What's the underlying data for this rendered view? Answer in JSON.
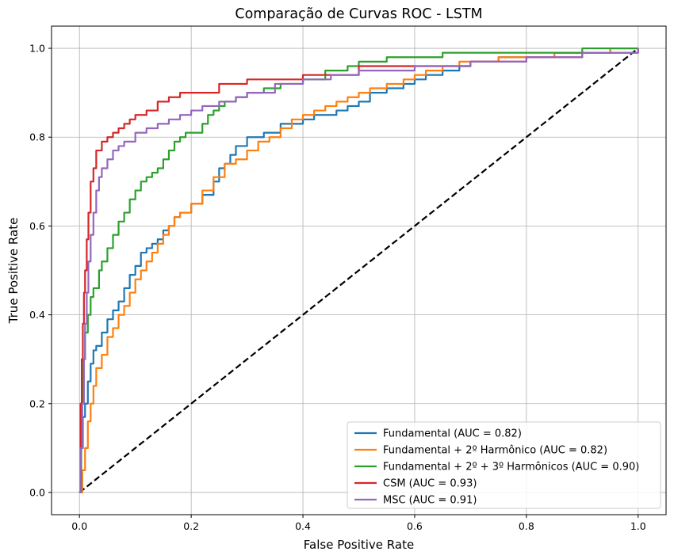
{
  "chart_data": {
    "type": "line",
    "title": "Comparação de Curvas ROC - LSTM",
    "xlabel": "False Positive Rate",
    "ylabel": "True Positive Rate",
    "xlim": [
      -0.05,
      1.05
    ],
    "ylim": [
      -0.05,
      1.05
    ],
    "xticks": [
      0.0,
      0.2,
      0.4,
      0.6,
      0.8,
      1.0
    ],
    "yticks": [
      0.0,
      0.2,
      0.4,
      0.6,
      0.8,
      1.0
    ],
    "xtick_labels": [
      "0.0",
      "0.2",
      "0.4",
      "0.6",
      "0.8",
      "1.0"
    ],
    "ytick_labels": [
      "0.0",
      "0.2",
      "0.4",
      "0.6",
      "0.8",
      "1.0"
    ],
    "grid": true,
    "legend_position": "lower-right",
    "diagonal": {
      "x": [
        0,
        1
      ],
      "y": [
        0,
        1
      ],
      "color": "#000000",
      "style": "dashed"
    },
    "series": [
      {
        "name": "Fundamental (AUC = 0.82)",
        "color": "#1f77b4",
        "x": [
          0,
          0.003,
          0.006,
          0.01,
          0.015,
          0.02,
          0.025,
          0.03,
          0.04,
          0.05,
          0.06,
          0.07,
          0.08,
          0.09,
          0.1,
          0.11,
          0.12,
          0.13,
          0.14,
          0.15,
          0.16,
          0.17,
          0.18,
          0.2,
          0.22,
          0.24,
          0.25,
          0.26,
          0.27,
          0.28,
          0.3,
          0.33,
          0.36,
          0.38,
          0.4,
          0.42,
          0.44,
          0.46,
          0.48,
          0.5,
          0.52,
          0.55,
          0.58,
          0.6,
          0.62,
          0.65,
          0.68,
          0.7,
          0.75,
          0.8,
          0.85,
          0.9,
          0.95,
          1.0
        ],
        "y": [
          0,
          0.1,
          0.17,
          0.2,
          0.25,
          0.29,
          0.32,
          0.33,
          0.36,
          0.39,
          0.41,
          0.43,
          0.46,
          0.49,
          0.51,
          0.54,
          0.55,
          0.56,
          0.57,
          0.59,
          0.6,
          0.62,
          0.63,
          0.65,
          0.67,
          0.7,
          0.73,
          0.74,
          0.76,
          0.78,
          0.8,
          0.81,
          0.83,
          0.83,
          0.84,
          0.85,
          0.85,
          0.86,
          0.87,
          0.88,
          0.9,
          0.91,
          0.92,
          0.93,
          0.94,
          0.95,
          0.96,
          0.97,
          0.98,
          0.98,
          0.99,
          0.99,
          1.0,
          1.0
        ]
      },
      {
        "name": "Fundamental + 2º Harmônico (AUC = 0.82)",
        "color": "#ff7f0e",
        "x": [
          0,
          0.005,
          0.01,
          0.015,
          0.02,
          0.025,
          0.03,
          0.04,
          0.05,
          0.06,
          0.07,
          0.08,
          0.09,
          0.1,
          0.11,
          0.12,
          0.13,
          0.14,
          0.15,
          0.16,
          0.17,
          0.18,
          0.2,
          0.22,
          0.24,
          0.26,
          0.28,
          0.3,
          0.32,
          0.34,
          0.36,
          0.38,
          0.4,
          0.42,
          0.44,
          0.46,
          0.48,
          0.5,
          0.52,
          0.55,
          0.58,
          0.6,
          0.62,
          0.65,
          0.68,
          0.7,
          0.75,
          0.8,
          0.85,
          0.9,
          0.95,
          1.0
        ],
        "y": [
          0,
          0.05,
          0.1,
          0.16,
          0.2,
          0.24,
          0.28,
          0.31,
          0.35,
          0.37,
          0.4,
          0.42,
          0.45,
          0.48,
          0.5,
          0.52,
          0.54,
          0.56,
          0.58,
          0.6,
          0.62,
          0.63,
          0.65,
          0.68,
          0.71,
          0.74,
          0.75,
          0.77,
          0.79,
          0.8,
          0.82,
          0.84,
          0.85,
          0.86,
          0.87,
          0.88,
          0.89,
          0.9,
          0.91,
          0.92,
          0.93,
          0.94,
          0.95,
          0.96,
          0.97,
          0.97,
          0.98,
          0.98,
          0.99,
          0.99,
          1.0,
          1.0
        ]
      },
      {
        "name": "Fundamental + 2º + 3º Harmônicos (AUC = 0.90)",
        "color": "#2ca02c",
        "x": [
          0,
          0.003,
          0.006,
          0.01,
          0.015,
          0.02,
          0.025,
          0.03,
          0.035,
          0.04,
          0.05,
          0.06,
          0.07,
          0.08,
          0.09,
          0.1,
          0.11,
          0.12,
          0.13,
          0.14,
          0.15,
          0.16,
          0.17,
          0.18,
          0.19,
          0.2,
          0.22,
          0.23,
          0.24,
          0.25,
          0.26,
          0.28,
          0.3,
          0.33,
          0.36,
          0.4,
          0.44,
          0.48,
          0.5,
          0.55,
          0.6,
          0.65,
          0.7,
          0.8,
          0.9,
          1.0
        ],
        "y": [
          0,
          0.2,
          0.3,
          0.36,
          0.4,
          0.44,
          0.46,
          0.46,
          0.5,
          0.52,
          0.55,
          0.58,
          0.61,
          0.63,
          0.66,
          0.68,
          0.7,
          0.71,
          0.72,
          0.73,
          0.75,
          0.77,
          0.79,
          0.8,
          0.81,
          0.81,
          0.83,
          0.85,
          0.86,
          0.87,
          0.88,
          0.89,
          0.9,
          0.91,
          0.92,
          0.93,
          0.95,
          0.96,
          0.97,
          0.98,
          0.98,
          0.99,
          0.99,
          0.99,
          1.0,
          1.0
        ]
      },
      {
        "name": "CSM (AUC = 0.93)",
        "color": "#d62728",
        "x": [
          0,
          0.002,
          0.004,
          0.006,
          0.008,
          0.01,
          0.013,
          0.016,
          0.02,
          0.025,
          0.03,
          0.04,
          0.05,
          0.06,
          0.07,
          0.08,
          0.09,
          0.1,
          0.12,
          0.14,
          0.16,
          0.18,
          0.2,
          0.25,
          0.3,
          0.35,
          0.4,
          0.5,
          0.6,
          0.7,
          0.8,
          0.9,
          1.0
        ],
        "y": [
          0,
          0.2,
          0.3,
          0.38,
          0.45,
          0.5,
          0.57,
          0.63,
          0.7,
          0.73,
          0.77,
          0.79,
          0.8,
          0.81,
          0.82,
          0.83,
          0.84,
          0.85,
          0.86,
          0.88,
          0.89,
          0.9,
          0.9,
          0.92,
          0.93,
          0.93,
          0.94,
          0.96,
          0.96,
          0.97,
          0.98,
          0.99,
          1.0
        ]
      },
      {
        "name": "MSC (AUC = 0.91)",
        "color": "#9467bd",
        "x": [
          0,
          0.002,
          0.005,
          0.008,
          0.01,
          0.013,
          0.016,
          0.02,
          0.025,
          0.03,
          0.035,
          0.04,
          0.05,
          0.06,
          0.07,
          0.08,
          0.1,
          0.12,
          0.14,
          0.16,
          0.18,
          0.2,
          0.22,
          0.25,
          0.28,
          0.3,
          0.35,
          0.4,
          0.45,
          0.5,
          0.6,
          0.7,
          0.8,
          0.9,
          1.0
        ],
        "y": [
          0,
          0.1,
          0.2,
          0.3,
          0.38,
          0.45,
          0.52,
          0.58,
          0.63,
          0.68,
          0.71,
          0.73,
          0.75,
          0.77,
          0.78,
          0.79,
          0.81,
          0.82,
          0.83,
          0.84,
          0.85,
          0.86,
          0.87,
          0.88,
          0.89,
          0.9,
          0.92,
          0.93,
          0.94,
          0.95,
          0.96,
          0.97,
          0.98,
          0.99,
          1.0
        ]
      }
    ]
  }
}
